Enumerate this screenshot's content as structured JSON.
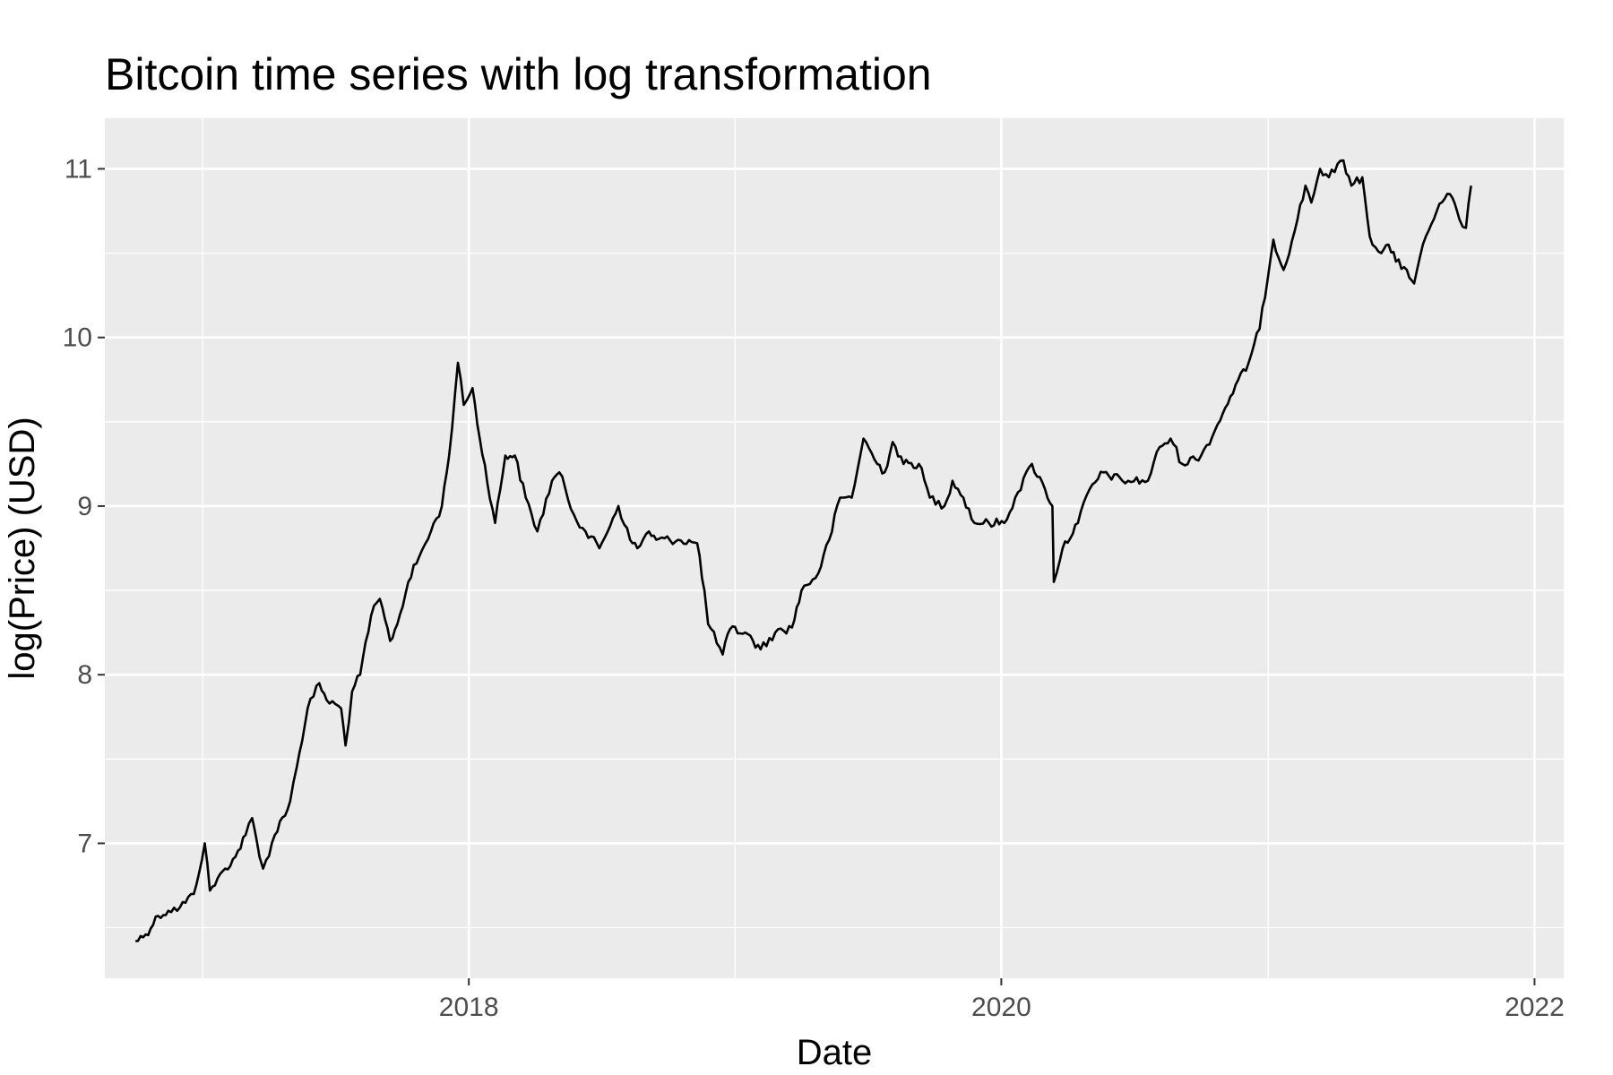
{
  "chart_data": {
    "type": "line",
    "title": "Bitcoin time series with log transformation",
    "xlabel": "Date",
    "ylabel": "log(Price) (USD)",
    "x_axis_type": "date",
    "xlim": [
      "2016-08-20",
      "2022-02-10"
    ],
    "ylim": [
      6.2,
      11.3
    ],
    "x_ticks": [
      {
        "label": "2018",
        "date": "2018-01-01"
      },
      {
        "label": "2020",
        "date": "2020-01-01"
      },
      {
        "label": "2022",
        "date": "2022-01-01"
      }
    ],
    "x_minor_ticks": [
      "2017-01-01",
      "2019-01-01",
      "2021-01-01"
    ],
    "y_ticks": [
      7,
      8,
      9,
      10,
      11
    ],
    "y_minor_ticks": [
      6.5,
      7.5,
      8.5,
      9.5,
      10.5
    ],
    "grid": true,
    "legend": "none",
    "series": [
      {
        "color": "#000000",
        "points": [
          [
            "2016-10-01",
            6.42
          ],
          [
            "2016-10-15",
            6.46
          ],
          [
            "2016-11-01",
            6.57
          ],
          [
            "2016-11-15",
            6.6
          ],
          [
            "2016-12-01",
            6.62
          ],
          [
            "2016-12-20",
            6.7
          ],
          [
            "2017-01-04",
            7.0
          ],
          [
            "2017-01-11",
            6.72
          ],
          [
            "2017-02-01",
            6.85
          ],
          [
            "2017-02-15",
            6.92
          ],
          [
            "2017-03-01",
            7.05
          ],
          [
            "2017-03-10",
            7.15
          ],
          [
            "2017-03-20",
            6.92
          ],
          [
            "2017-03-25",
            6.85
          ],
          [
            "2017-04-10",
            7.05
          ],
          [
            "2017-05-01",
            7.25
          ],
          [
            "2017-05-10",
            7.45
          ],
          [
            "2017-05-25",
            7.8
          ],
          [
            "2017-06-10",
            7.95
          ],
          [
            "2017-06-20",
            7.85
          ],
          [
            "2017-07-10",
            7.8
          ],
          [
            "2017-07-16",
            7.58
          ],
          [
            "2017-07-25",
            7.9
          ],
          [
            "2017-08-05",
            8.0
          ],
          [
            "2017-08-20",
            8.35
          ],
          [
            "2017-09-01",
            8.45
          ],
          [
            "2017-09-15",
            8.2
          ],
          [
            "2017-09-25",
            8.3
          ],
          [
            "2017-10-10",
            8.55
          ],
          [
            "2017-10-25",
            8.7
          ],
          [
            "2017-11-10",
            8.85
          ],
          [
            "2017-11-25",
            9.0
          ],
          [
            "2017-12-05",
            9.3
          ],
          [
            "2017-12-17",
            9.85
          ],
          [
            "2017-12-25",
            9.6
          ],
          [
            "2018-01-06",
            9.7
          ],
          [
            "2018-01-16",
            9.4
          ],
          [
            "2018-02-06",
            8.9
          ],
          [
            "2018-02-20",
            9.3
          ],
          [
            "2018-03-05",
            9.3
          ],
          [
            "2018-03-20",
            9.05
          ],
          [
            "2018-04-05",
            8.85
          ],
          [
            "2018-04-25",
            9.15
          ],
          [
            "2018-05-05",
            9.2
          ],
          [
            "2018-05-25",
            8.95
          ],
          [
            "2018-06-10",
            8.85
          ],
          [
            "2018-06-29",
            8.75
          ],
          [
            "2018-07-25",
            9.0
          ],
          [
            "2018-08-10",
            8.8
          ],
          [
            "2018-08-20",
            8.75
          ],
          [
            "2018-09-05",
            8.85
          ],
          [
            "2018-09-15",
            8.8
          ],
          [
            "2018-10-15",
            8.8
          ],
          [
            "2018-11-10",
            8.78
          ],
          [
            "2018-11-20",
            8.5
          ],
          [
            "2018-11-25",
            8.3
          ],
          [
            "2018-12-15",
            8.12
          ],
          [
            "2018-12-25",
            8.27
          ],
          [
            "2019-01-15",
            8.25
          ],
          [
            "2019-02-05",
            8.15
          ],
          [
            "2019-02-25",
            8.25
          ],
          [
            "2019-03-20",
            8.28
          ],
          [
            "2019-04-02",
            8.5
          ],
          [
            "2019-04-25",
            8.6
          ],
          [
            "2019-05-10",
            8.8
          ],
          [
            "2019-05-25",
            9.05
          ],
          [
            "2019-06-10",
            9.05
          ],
          [
            "2019-06-26",
            9.4
          ],
          [
            "2019-07-15",
            9.25
          ],
          [
            "2019-07-25",
            9.2
          ],
          [
            "2019-08-05",
            9.38
          ],
          [
            "2019-08-20",
            9.25
          ],
          [
            "2019-09-10",
            9.25
          ],
          [
            "2019-09-25",
            9.05
          ],
          [
            "2019-10-15",
            9.0
          ],
          [
            "2019-10-26",
            9.15
          ],
          [
            "2019-11-10",
            9.05
          ],
          [
            "2019-11-25",
            8.9
          ],
          [
            "2019-12-15",
            8.9
          ],
          [
            "2020-01-05",
            8.9
          ],
          [
            "2020-01-20",
            9.05
          ],
          [
            "2020-02-12",
            9.25
          ],
          [
            "2020-03-01",
            9.1
          ],
          [
            "2020-03-11",
            9.0
          ],
          [
            "2020-03-13",
            8.55
          ],
          [
            "2020-03-25",
            8.75
          ],
          [
            "2020-04-15",
            8.9
          ],
          [
            "2020-05-01",
            9.1
          ],
          [
            "2020-05-20",
            9.2
          ],
          [
            "2020-06-15",
            9.15
          ],
          [
            "2020-07-20",
            9.15
          ],
          [
            "2020-08-05",
            9.35
          ],
          [
            "2020-08-20",
            9.4
          ],
          [
            "2020-09-05",
            9.25
          ],
          [
            "2020-10-01",
            9.3
          ],
          [
            "2020-10-20",
            9.45
          ],
          [
            "2020-11-10",
            9.65
          ],
          [
            "2020-12-05",
            9.85
          ],
          [
            "2020-12-20",
            10.05
          ],
          [
            "2021-01-08",
            10.58
          ],
          [
            "2021-01-22",
            10.4
          ],
          [
            "2021-02-10",
            10.7
          ],
          [
            "2021-02-21",
            10.9
          ],
          [
            "2021-03-01",
            10.8
          ],
          [
            "2021-03-13",
            11.0
          ],
          [
            "2021-03-25",
            10.95
          ],
          [
            "2021-04-14",
            11.05
          ],
          [
            "2021-04-25",
            10.9
          ],
          [
            "2021-05-10",
            10.95
          ],
          [
            "2021-05-20",
            10.6
          ],
          [
            "2021-06-05",
            10.5
          ],
          [
            "2021-06-15",
            10.55
          ],
          [
            "2021-06-25",
            10.45
          ],
          [
            "2021-07-10",
            10.4
          ],
          [
            "2021-07-20",
            10.32
          ],
          [
            "2021-08-05",
            10.6
          ],
          [
            "2021-08-20",
            10.75
          ],
          [
            "2021-09-07",
            10.85
          ],
          [
            "2021-09-20",
            10.7
          ],
          [
            "2021-09-29",
            10.65
          ],
          [
            "2021-10-06",
            10.9
          ]
        ]
      }
    ]
  }
}
